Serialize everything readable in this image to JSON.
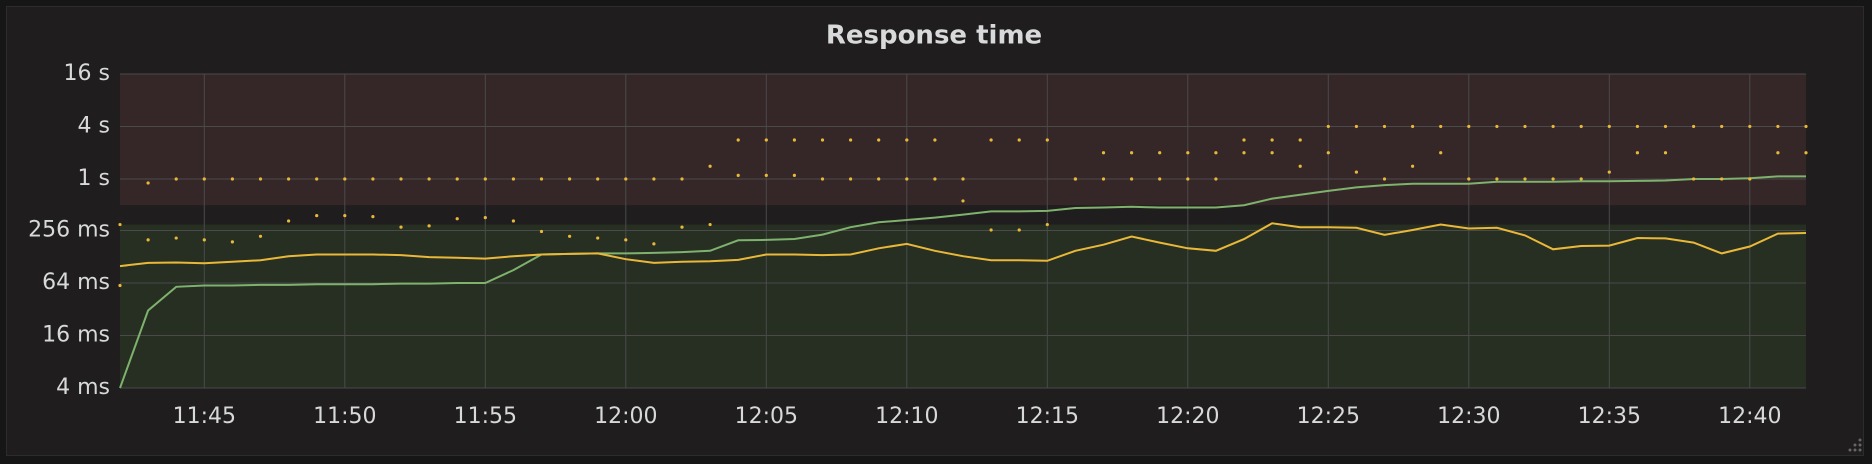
{
  "chart_data": {
    "type": "timeseries",
    "title": "Response time",
    "x": [
      "11:42",
      "11:43",
      "11:44",
      "11:45",
      "11:46",
      "11:47",
      "11:48",
      "11:49",
      "11:50",
      "11:51",
      "11:52",
      "11:53",
      "11:54",
      "11:55",
      "11:56",
      "11:57",
      "11:58",
      "11:59",
      "12:00",
      "12:01",
      "12:02",
      "12:03",
      "12:04",
      "12:05",
      "12:06",
      "12:07",
      "12:08",
      "12:09",
      "12:10",
      "12:11",
      "12:12",
      "12:13",
      "12:14",
      "12:15",
      "12:16",
      "12:17",
      "12:18",
      "12:19",
      "12:20",
      "12:21",
      "12:22",
      "12:23",
      "12:24",
      "12:25",
      "12:26",
      "12:27",
      "12:28",
      "12:29",
      "12:30",
      "12:31",
      "12:32",
      "12:33",
      "12:34",
      "12:35",
      "12:36",
      "12:37",
      "12:38",
      "12:39",
      "12:40",
      "12:41",
      "12:42"
    ],
    "xlim": [
      "11:42",
      "12:42"
    ],
    "xticks": [
      "11:45",
      "11:50",
      "11:55",
      "12:00",
      "12:05",
      "12:10",
      "12:15",
      "12:20",
      "12:25",
      "12:30",
      "12:35",
      "12:40"
    ],
    "ylim": [
      4,
      16000
    ],
    "log_scale": true,
    "yticks": [
      {
        "value": 4,
        "label": "4 ms"
      },
      {
        "value": 16,
        "label": "16 ms"
      },
      {
        "value": 64,
        "label": "64 ms"
      },
      {
        "value": 256,
        "label": "256 ms"
      },
      {
        "value": 1000,
        "label": "1 s"
      },
      {
        "value": 4000,
        "label": "4 s"
      },
      {
        "value": 16000,
        "label": "16 s"
      }
    ],
    "grid": true,
    "threshold_fills": [
      {
        "from": 4,
        "to": 300,
        "color": "#262f22"
      },
      {
        "from": 500,
        "to": 16000,
        "color": "#352728"
      }
    ],
    "series": [
      {
        "color": "#7eb26d",
        "style": "line",
        "values": [
          4,
          31,
          58,
          60,
          60,
          61,
          61,
          62,
          62,
          62,
          63,
          63,
          64,
          64,
          90,
          136,
          138,
          140,
          140,
          142,
          145,
          150,
          198,
          200,
          205,
          230,
          280,
          318,
          338,
          360,
          390,
          424,
          424,
          430,
          464,
          470,
          480,
          470,
          470,
          470,
          500,
          596,
          660,
          730,
          800,
          850,
          880,
          880,
          880,
          930,
          930,
          930,
          940,
          940,
          950,
          960,
          1000,
          1000,
          1020,
          1070,
          1070
        ]
      },
      {
        "color": "#eab839",
        "style": "line",
        "values": [
          100,
          109,
          110,
          108,
          112,
          117,
          130,
          136,
          136,
          136,
          134,
          127,
          125,
          122,
          130,
          136,
          138,
          140,
          120,
          109,
          112,
          114,
          118,
          136,
          136,
          134,
          136,
          160,
          180,
          150,
          130,
          117,
          117,
          115,
          150,
          176,
          219,
          186,
          160,
          150,
          204,
          310,
          280,
          280,
          275,
          228,
          260,
          300,
          270,
          275,
          225,
          156,
          170,
          172,
          210,
          208,
          186,
          140,
          168,
          236,
          240
        ]
      },
      {
        "color": "#eab839",
        "style": "points",
        "values": [
          300,
          900,
          1000,
          1000,
          1000,
          1000,
          1000,
          1000,
          1000,
          1000,
          1000,
          1000,
          1000,
          1000,
          1000,
          1000,
          1000,
          1000,
          1000,
          1000,
          1000,
          1400,
          2800,
          2800,
          2800,
          2800,
          2800,
          2800,
          2800,
          2800,
          1000,
          2800,
          2800,
          2800,
          1000,
          2000,
          2000,
          2000,
          2000,
          2000,
          2800,
          2800,
          2800,
          4000,
          4000,
          4000,
          4000,
          4000,
          4000,
          4000,
          4000,
          4000,
          4000,
          4000,
          4000,
          4000,
          4000,
          4000,
          4000,
          4000,
          4000
        ]
      },
      {
        "color": "#eab839",
        "style": "points",
        "values": [
          60,
          200,
          210,
          200,
          190,
          220,
          330,
          380,
          380,
          370,
          280,
          290,
          350,
          360,
          330,
          250,
          220,
          210,
          200,
          180,
          280,
          300,
          1100,
          1100,
          1100,
          1000,
          1000,
          1000,
          1000,
          1000,
          560,
          260,
          260,
          300,
          1000,
          1000,
          1000,
          1000,
          1000,
          1000,
          2000,
          2000,
          1400,
          2000,
          1200,
          1000,
          1400,
          2000,
          1000,
          1000,
          1000,
          1000,
          1000,
          1200,
          2000,
          2000,
          1000,
          1000,
          1000,
          2000,
          2000
        ]
      }
    ]
  }
}
